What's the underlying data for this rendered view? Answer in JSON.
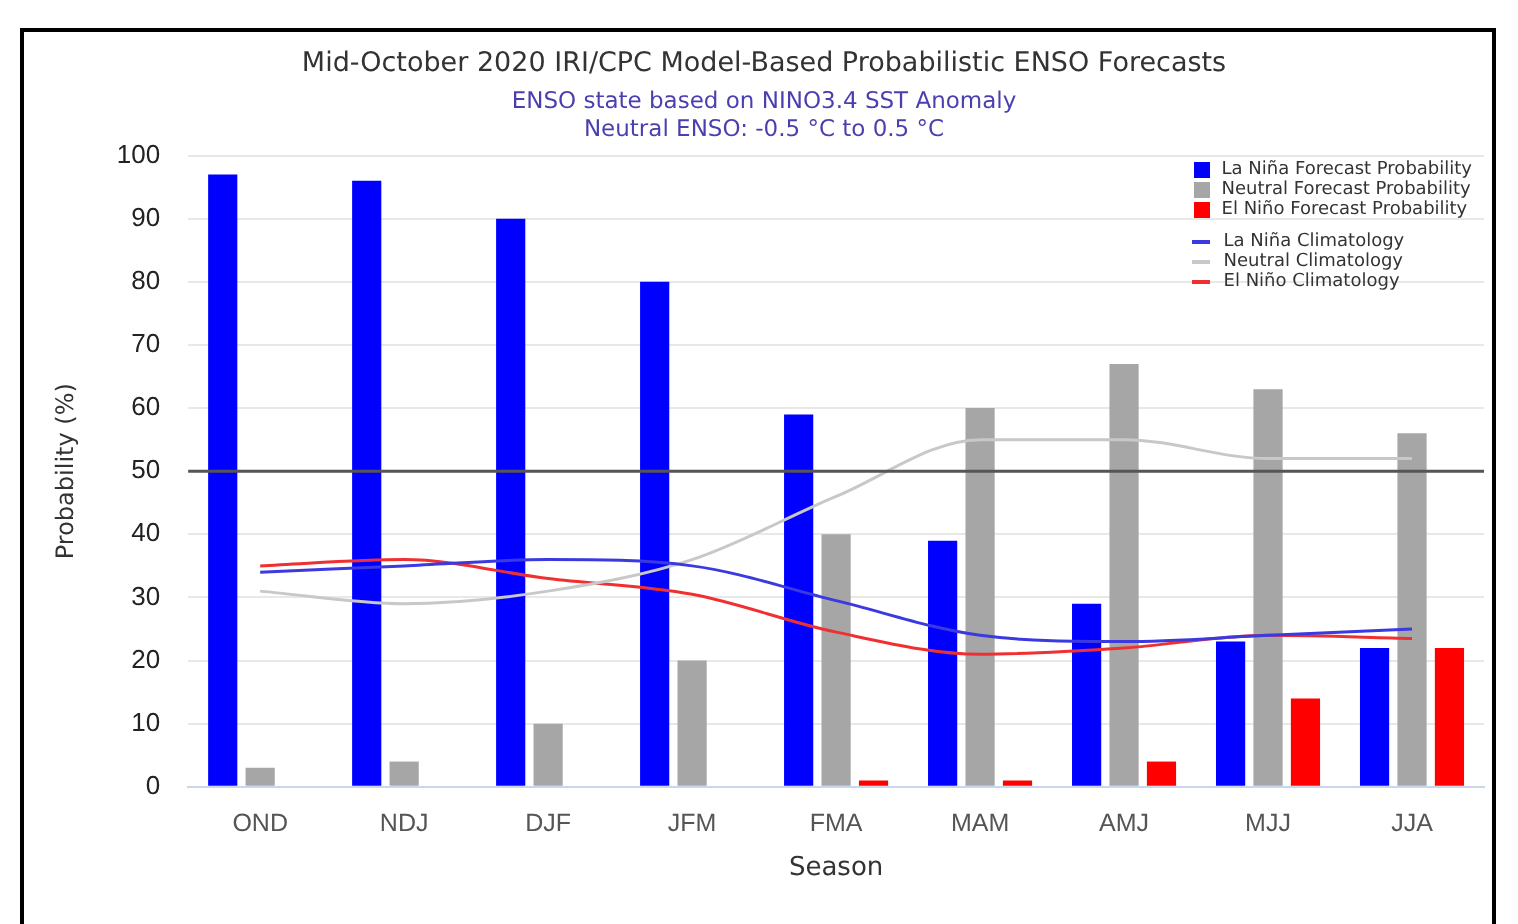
{
  "chart_data": {
    "type": "bar",
    "title": "Mid-October 2020 IRI/CPC Model-Based Probabilistic ENSO Forecasts",
    "subtitle": "ENSO state based on NINO3.4 SST Anomaly\nNeutral ENSO: -0.5 °C to 0.5 °C",
    "xlabel": "Season",
    "ylabel": "Probability (%)",
    "categories": [
      "OND",
      "NDJ",
      "DJF",
      "JFM",
      "FMA",
      "MAM",
      "AMJ",
      "MJJ",
      "JJA"
    ],
    "series": [
      {
        "name": "La Niña Forecast Probability",
        "color": "#0000ff",
        "values": [
          97,
          96,
          90,
          80,
          59,
          39,
          29,
          23,
          22
        ]
      },
      {
        "name": "Neutral Forecast Probability",
        "color": "#a6a6a6",
        "values": [
          3,
          4,
          10,
          20,
          40,
          60,
          67,
          63,
          56
        ]
      },
      {
        "name": "El Niño Forecast Probability",
        "color": "#ff0000",
        "values": [
          0,
          0,
          0,
          0,
          1,
          1,
          4,
          14,
          22
        ]
      },
      {
        "name": "La Niña Climatology",
        "type": "line",
        "color": "#3a3ae0",
        "values": [
          34,
          35,
          36,
          35,
          29.5,
          24,
          23,
          24,
          25
        ]
      },
      {
        "name": "Neutral Climatology",
        "type": "line",
        "color": "#c8c8c8",
        "values": [
          31,
          29,
          31,
          36,
          46,
          55,
          55,
          52,
          52
        ]
      },
      {
        "name": "El Niño Climatology",
        "type": "line",
        "color": "#f03030",
        "values": [
          35,
          36,
          33,
          30.5,
          24.5,
          21,
          22,
          24,
          23.5
        ]
      }
    ],
    "ylim": [
      0,
      100
    ],
    "yticks": [
      0,
      10,
      20,
      30,
      40,
      50,
      60,
      70,
      80,
      90,
      100
    ],
    "grid": "y",
    "legend": "top right",
    "marker": "none",
    "ref_lines": [
      {
        "axis": "y",
        "value": 50,
        "color": "#555555"
      }
    ]
  }
}
